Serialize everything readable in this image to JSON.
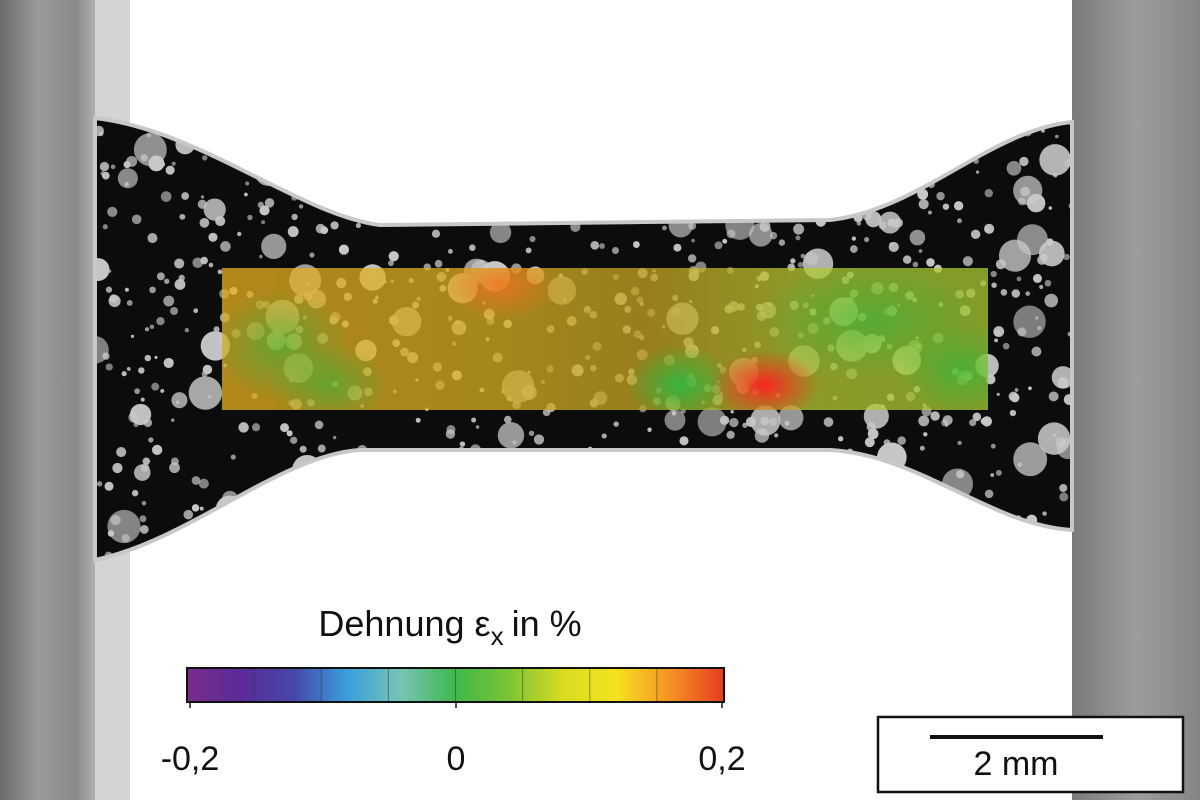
{
  "colorbar": {
    "label": "Dehnung ε",
    "subscript": "x",
    "suffix": "in %",
    "ticks": [
      {
        "value": -0.2,
        "label": "-0,2"
      },
      0,
      {
        "value": 0.2,
        "label": "0,2"
      }
    ],
    "colors": [
      "#7a2d8c",
      "#5a2b98",
      "#4548a8",
      "#3aa0dc",
      "#78c4b4",
      "#3db84a",
      "#7cc434",
      "#d8dc20",
      "#f5e21e",
      "#f59224",
      "#e63c1e"
    ]
  },
  "scale_bar": {
    "label": "2 mm"
  }
}
